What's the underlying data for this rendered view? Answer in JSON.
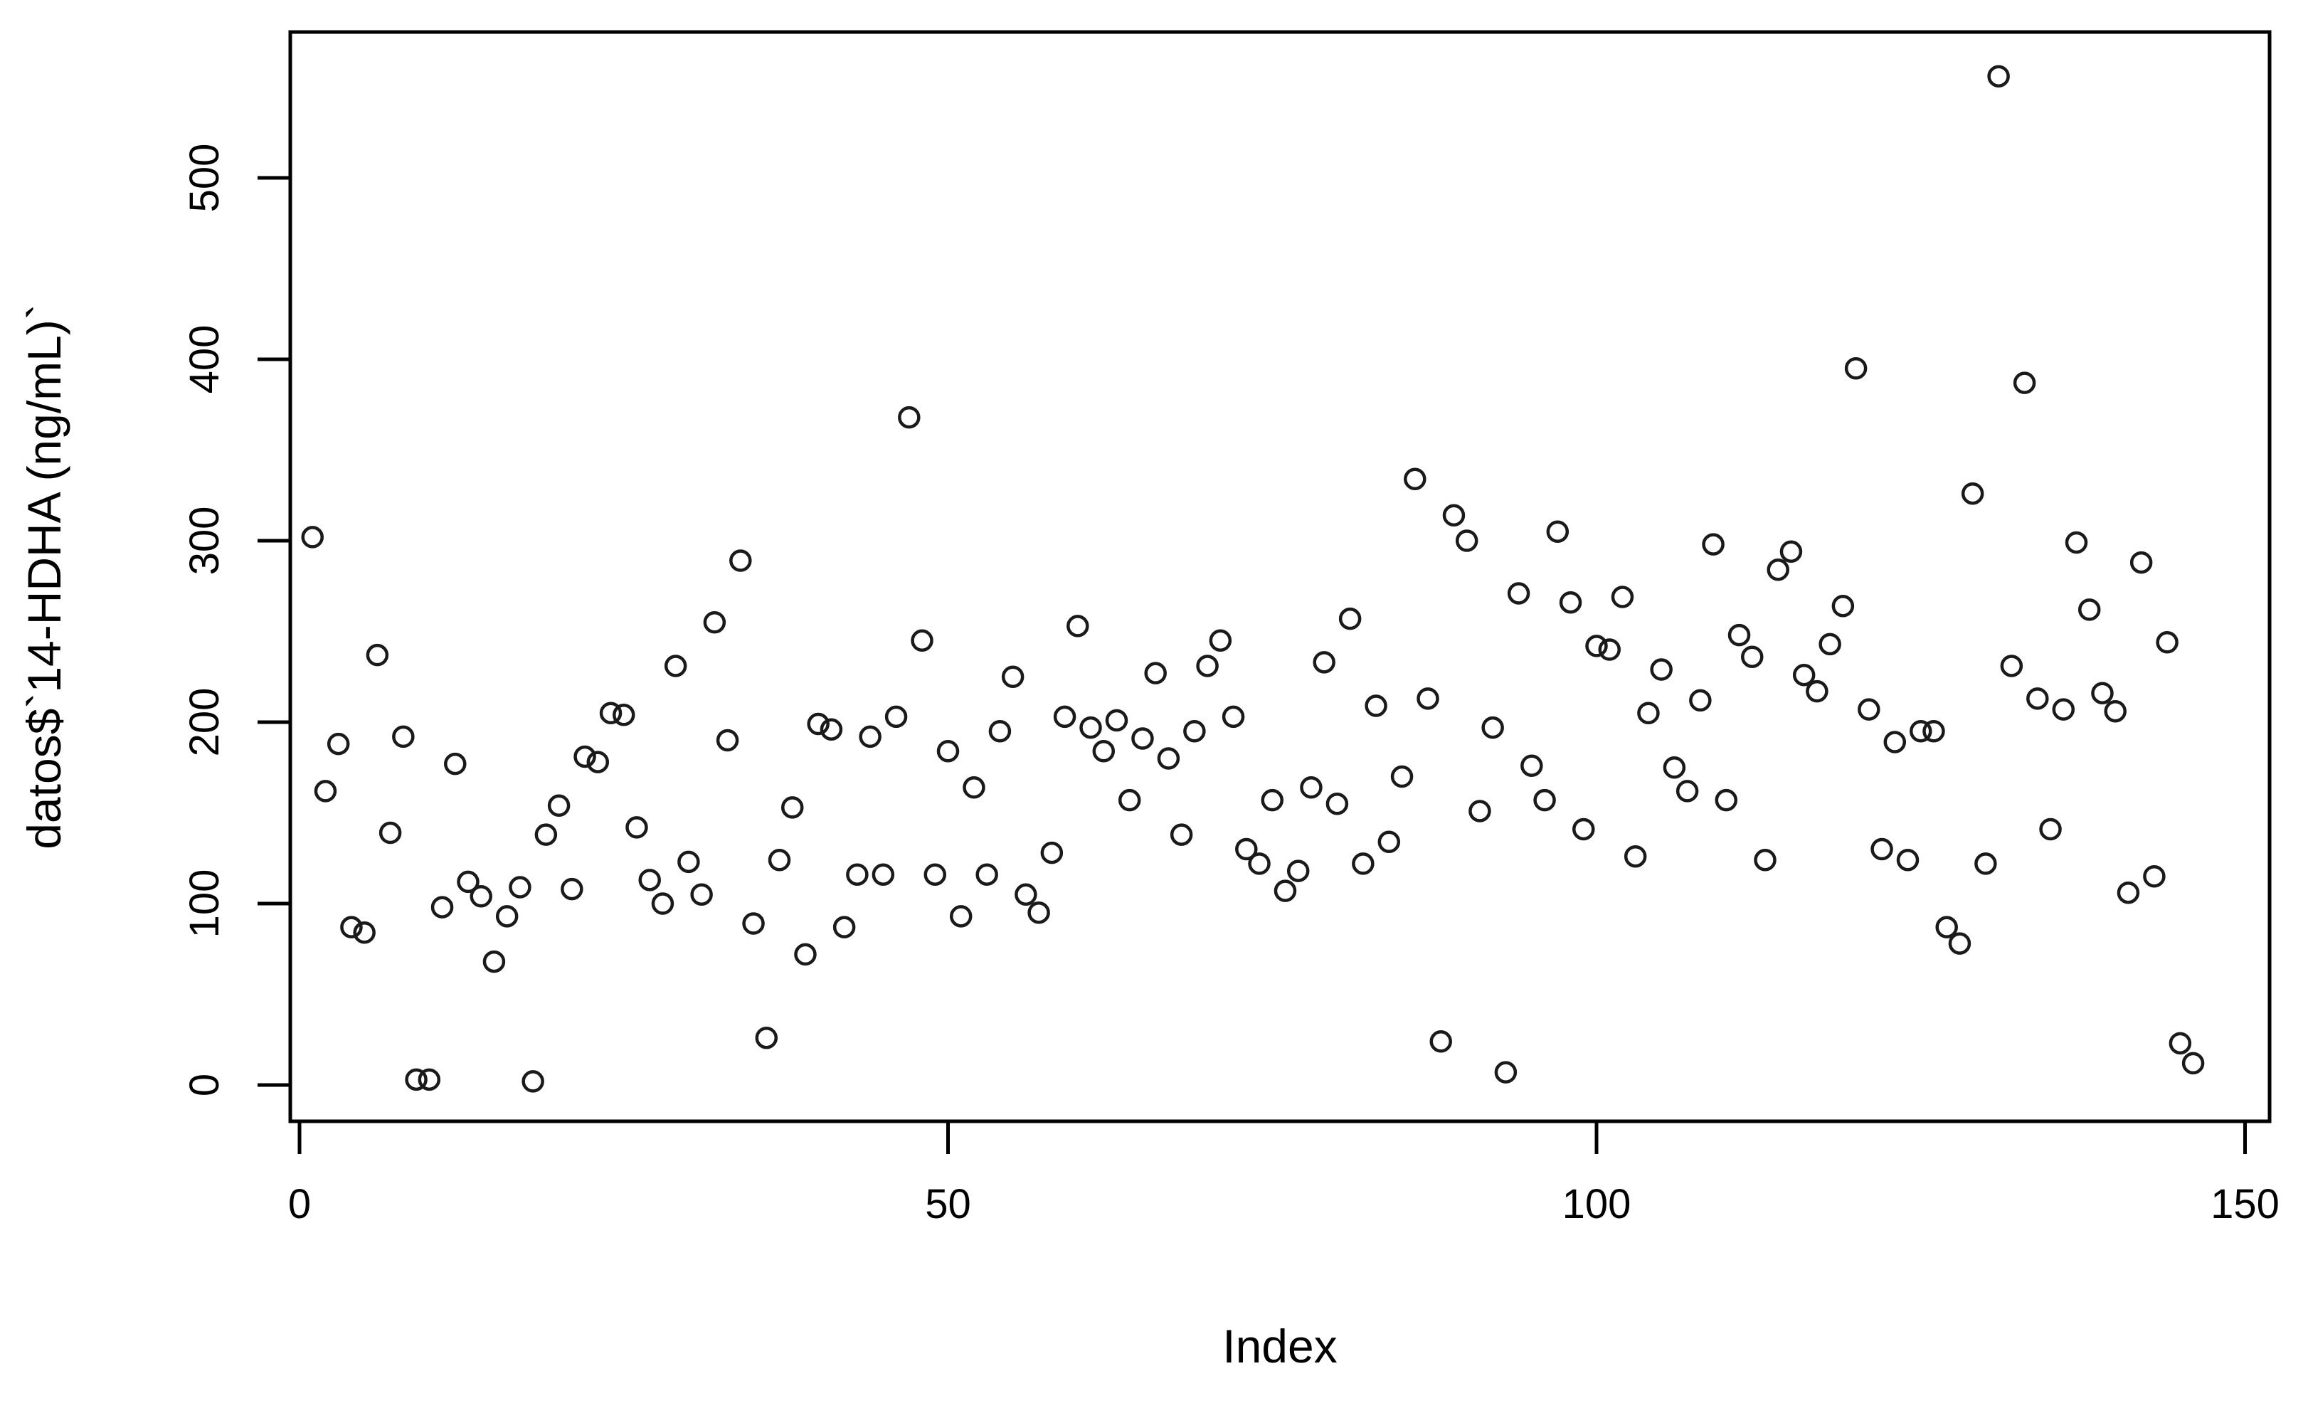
{
  "figure": {
    "background_color": "#ffffff",
    "plot_border_color": "#000000",
    "point_color": "#1a1a1a"
  },
  "chart_data": {
    "type": "scatter",
    "title": "",
    "xlabel": "Index",
    "ylabel": "datos$`14-HDHA (ng/mL)`",
    "marker": "open-circle",
    "grid": false,
    "legend": null,
    "xlim": [
      -5,
      154
    ],
    "ylim": [
      -20,
      580
    ],
    "x_ticks": [
      0,
      50,
      100,
      150
    ],
    "y_ticks": [
      0,
      100,
      200,
      300,
      400,
      500
    ],
    "x": "index 1..146 (one point per observation, left to right)",
    "y": [
      302,
      162,
      188,
      87,
      84,
      237,
      139,
      192,
      3,
      3,
      98,
      177,
      112,
      104,
      68,
      93,
      109,
      2,
      138,
      154,
      108,
      181,
      178,
      205,
      204,
      142,
      113,
      100,
      231,
      123,
      105,
      255,
      190,
      289,
      89,
      26,
      124,
      153,
      72,
      199,
      196,
      87,
      116,
      192,
      116,
      203,
      368,
      245,
      116,
      184,
      93,
      164,
      116,
      195,
      225,
      105,
      95,
      128,
      203,
      253,
      197,
      184,
      201,
      157,
      191,
      227,
      180,
      138,
      195,
      231,
      245,
      203,
      130,
      122,
      157,
      107,
      118,
      164,
      233,
      155,
      257,
      122,
      209,
      134,
      170,
      334,
      213,
      24,
      314,
      300,
      151,
      197,
      7,
      271,
      176,
      157,
      305,
      266,
      141,
      242,
      240,
      269,
      126,
      205,
      229,
      175,
      162,
      212,
      298,
      157,
      248,
      236,
      124,
      284,
      294,
      226,
      217,
      243,
      264,
      395,
      207,
      130,
      189,
      124,
      195,
      195,
      87,
      78,
      326,
      122,
      556,
      231,
      387,
      213,
      141,
      207,
      299,
      262,
      216,
      206,
      106,
      288,
      115,
      244,
      23,
      12
    ]
  }
}
